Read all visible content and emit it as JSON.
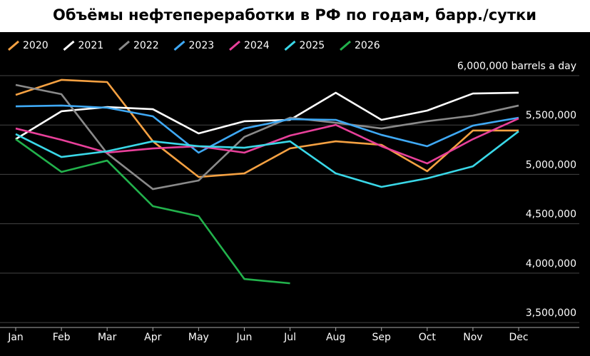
{
  "chart_data": {
    "type": "line",
    "title": "Объёмы нефтепереработки в РФ по годам, барр./сутки",
    "categories": [
      "Jan",
      "Feb",
      "Mar",
      "Apr",
      "May",
      "Jun",
      "Jul",
      "Aug",
      "Sep",
      "Oct",
      "Nov",
      "Dec"
    ],
    "ylim": [
      3450000,
      6000000
    ],
    "yticks": [
      {
        "value": 3500000,
        "label": "3,500,000"
      },
      {
        "value": 4000000,
        "label": "4,000,000"
      },
      {
        "value": 4500000,
        "label": "4,500,000"
      },
      {
        "value": 5000000,
        "label": "5,000,000"
      },
      {
        "value": 5500000,
        "label": "5,500,000"
      },
      {
        "value": 6000000,
        "label": "6,000,000 barrels a day"
      }
    ],
    "grid": true,
    "legend": "top-left",
    "series": [
      {
        "name": "2020",
        "color": "#f5a142",
        "values": [
          5805000,
          5957000,
          5935000,
          5335000,
          4974000,
          5010000,
          5263000,
          5335000,
          5299000,
          5032000,
          5444000,
          5444000
        ]
      },
      {
        "name": "2021",
        "color": "#ffffff",
        "values": [
          5357000,
          5639000,
          5682000,
          5660000,
          5415000,
          5538000,
          5552000,
          5827000,
          5552000,
          5646000,
          5819000,
          5827000
        ]
      },
      {
        "name": "2022",
        "color": "#8a8a8a",
        "values": [
          5906000,
          5812000,
          5212000,
          4851000,
          4938000,
          5379000,
          5574000,
          5523000,
          5465000,
          5538000,
          5595000,
          5697000
        ]
      },
      {
        "name": "2023",
        "color": "#3fa9f5",
        "values": [
          5689000,
          5697000,
          5675000,
          5588000,
          5220000,
          5465000,
          5559000,
          5552000,
          5400000,
          5285000,
          5494000,
          5574000
        ]
      },
      {
        "name": "2024",
        "color": "#e8409a",
        "values": [
          5465000,
          5350000,
          5220000,
          5263000,
          5285000,
          5220000,
          5393000,
          5501000,
          5285000,
          5111000,
          5357000,
          5566000
        ]
      },
      {
        "name": "2025",
        "color": "#3ad8e8",
        "values": [
          5408000,
          5176000,
          5234000,
          5335000,
          5285000,
          5270000,
          5335000,
          5010000,
          4873000,
          4960000,
          5082000,
          5436000
        ]
      },
      {
        "name": "2026",
        "color": "#22b24c",
        "values": [
          5357000,
          5025000,
          5140000,
          4678000,
          4577000,
          3941000,
          3897000,
          null,
          null,
          null,
          null,
          null
        ]
      }
    ]
  }
}
